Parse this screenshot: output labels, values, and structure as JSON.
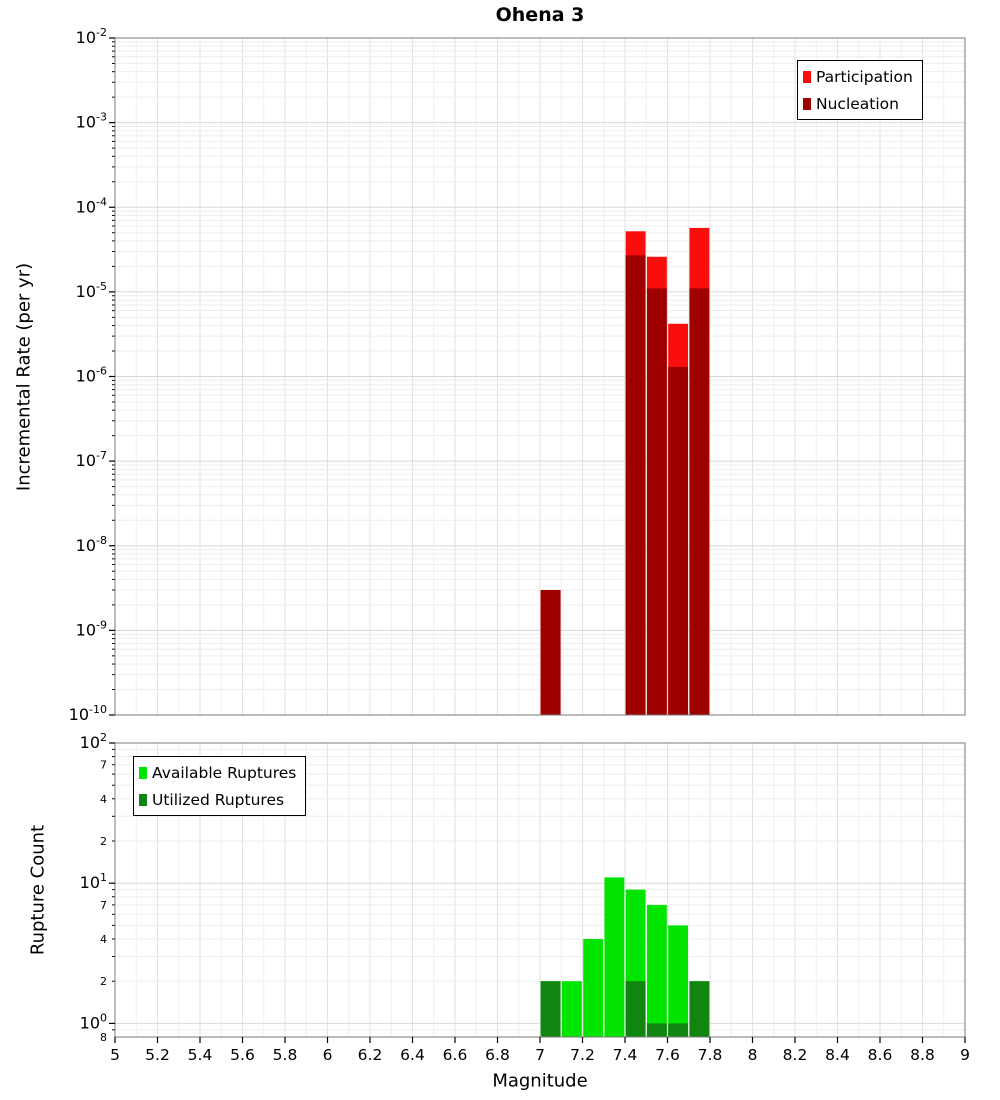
{
  "title": "Ohena 3",
  "axes": {
    "top": {
      "ylabel": "Incremental Rate (per yr)",
      "log_label_base": "10",
      "y_tick_exponents": [
        "-2",
        "-3",
        "-4",
        "-5",
        "-6",
        "-7",
        "-8",
        "-9",
        "-10"
      ]
    },
    "bottom": {
      "ylabel": "Rupture Count",
      "xlabel": "Magnitude",
      "log_label_base": "10",
      "y_tick_exponents": [
        "2",
        "1",
        "0"
      ],
      "y_minor_labels": [
        {
          "label": "7",
          "value": 70
        },
        {
          "label": "4",
          "value": 40
        },
        {
          "label": "2",
          "value": 20
        },
        {
          "label": "7",
          "value": 7
        },
        {
          "label": "4",
          "value": 4
        },
        {
          "label": "2",
          "value": 2
        },
        {
          "label": "8",
          "value": 0.8
        }
      ]
    },
    "x_ticks": [
      {
        "label": "5",
        "value": 5
      },
      {
        "label": "5.2",
        "value": 5.2
      },
      {
        "label": "5.4",
        "value": 5.4
      },
      {
        "label": "5.6",
        "value": 5.6
      },
      {
        "label": "5.8",
        "value": 5.8
      },
      {
        "label": "6",
        "value": 6
      },
      {
        "label": "6.2",
        "value": 6.2
      },
      {
        "label": "6.4",
        "value": 6.4
      },
      {
        "label": "6.6",
        "value": 6.6
      },
      {
        "label": "6.8",
        "value": 6.8
      },
      {
        "label": "7",
        "value": 7
      },
      {
        "label": "7.2",
        "value": 7.2
      },
      {
        "label": "7.4",
        "value": 7.4
      },
      {
        "label": "7.6",
        "value": 7.6
      },
      {
        "label": "7.8",
        "value": 7.8
      },
      {
        "label": "8",
        "value": 8
      },
      {
        "label": "8.2",
        "value": 8.2
      },
      {
        "label": "8.4",
        "value": 8.4
      },
      {
        "label": "8.6",
        "value": 8.6
      },
      {
        "label": "8.8",
        "value": 8.8
      },
      {
        "label": "9",
        "value": 9
      }
    ]
  },
  "legends": {
    "top": [
      {
        "label": "Participation",
        "color": "#f90d0d"
      },
      {
        "label": "Nucleation",
        "color": "#9e0000"
      }
    ],
    "bottom": [
      {
        "label": "Available Ruptures",
        "color": "#00e400"
      },
      {
        "label": "Utilized Ruptures",
        "color": "#108510"
      }
    ]
  },
  "chart_data": [
    {
      "type": "bar",
      "title": "Ohena 3",
      "ylabel": "Incremental Rate (per yr)",
      "xlabel": "",
      "yscale": "log",
      "ylim": [
        1e-10,
        0.01
      ],
      "xlim": [
        5,
        9
      ],
      "bin_width": 0.1,
      "grid": true,
      "legend_position": "top-right",
      "series": [
        {
          "name": "Participation",
          "color": "#f90d0d",
          "bars": [
            {
              "x": 7.0,
              "y": 3e-09
            },
            {
              "x": 7.4,
              "y": 5.2e-05
            },
            {
              "x": 7.5,
              "y": 2.6e-05
            },
            {
              "x": 7.6,
              "y": 4.2e-06
            },
            {
              "x": 7.7,
              "y": 5.7e-05
            }
          ]
        },
        {
          "name": "Nucleation",
          "color": "#9e0000",
          "bars": [
            {
              "x": 7.0,
              "y": 3e-09
            },
            {
              "x": 7.4,
              "y": 2.7e-05
            },
            {
              "x": 7.5,
              "y": 1.1e-05
            },
            {
              "x": 7.6,
              "y": 1.3e-06
            },
            {
              "x": 7.7,
              "y": 1.1e-05
            }
          ]
        }
      ]
    },
    {
      "type": "bar",
      "title": "",
      "ylabel": "Rupture Count",
      "xlabel": "Magnitude",
      "yscale": "log",
      "ylim": [
        0.8,
        100
      ],
      "xlim": [
        5,
        9
      ],
      "bin_width": 0.1,
      "grid": true,
      "legend_position": "top-left",
      "series": [
        {
          "name": "Available Ruptures",
          "color": "#00e400",
          "bars": [
            {
              "x": 7.0,
              "y": 2
            },
            {
              "x": 7.1,
              "y": 2
            },
            {
              "x": 7.2,
              "y": 4
            },
            {
              "x": 7.3,
              "y": 11
            },
            {
              "x": 7.4,
              "y": 9
            },
            {
              "x": 7.5,
              "y": 7
            },
            {
              "x": 7.6,
              "y": 5
            },
            {
              "x": 7.7,
              "y": 2
            }
          ]
        },
        {
          "name": "Utilized Ruptures",
          "color": "#108510",
          "bars": [
            {
              "x": 7.0,
              "y": 2
            },
            {
              "x": 7.4,
              "y": 2
            },
            {
              "x": 7.5,
              "y": 1
            },
            {
              "x": 7.6,
              "y": 1
            },
            {
              "x": 7.7,
              "y": 2
            }
          ]
        }
      ]
    }
  ]
}
